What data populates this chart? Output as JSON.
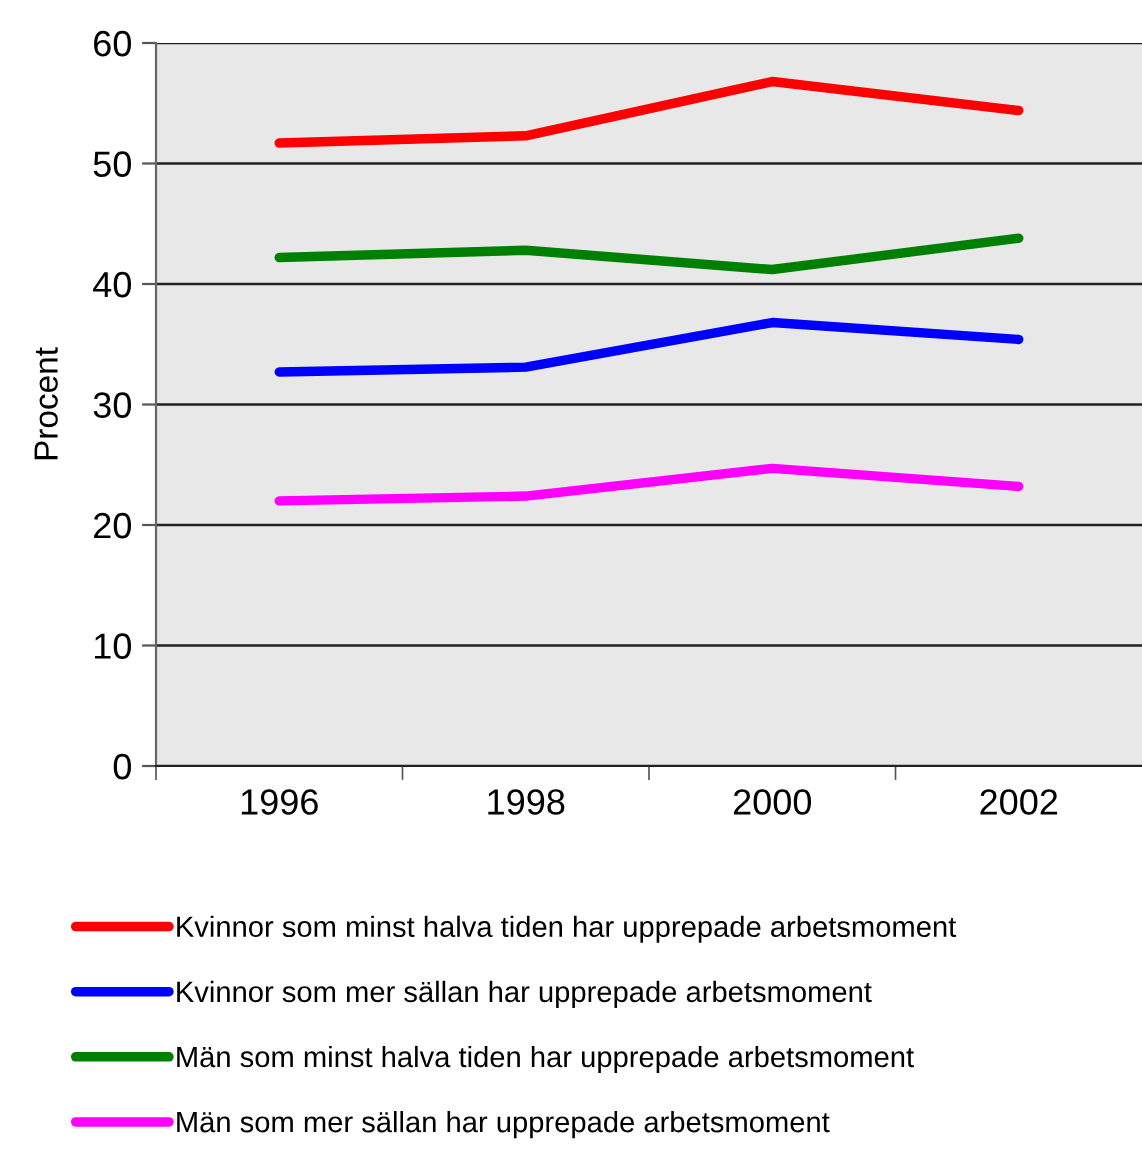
{
  "chart_data": {
    "type": "line",
    "ylabel": "Procent",
    "categories": [
      "1996",
      "1998",
      "2000",
      "2002"
    ],
    "series": [
      {
        "name": "Kvinnor som minst halva tiden har upprepade arbetsmoment",
        "color": "#ff0000",
        "values": [
          51.7,
          52.3,
          56.8,
          54.4
        ]
      },
      {
        "name": "Kvinnor som mer sällan har upprepade arbetsmoment",
        "color": "#0000ff",
        "values": [
          32.7,
          33.1,
          36.8,
          35.4
        ]
      },
      {
        "name": "Män som minst halva tiden har upprepade arbetsmoment",
        "color": "#008000",
        "values": [
          42.2,
          42.8,
          41.2,
          43.8
        ]
      },
      {
        "name": "Män som mer sällan har upprepade arbetsmoment",
        "color": "#ff00ff",
        "values": [
          22.0,
          22.4,
          24.7,
          23.2
        ]
      }
    ],
    "ylim": [
      0,
      60
    ],
    "yticks": [
      0,
      10,
      20,
      30,
      40,
      50,
      60
    ],
    "grid": "y",
    "legend": "bottom"
  }
}
